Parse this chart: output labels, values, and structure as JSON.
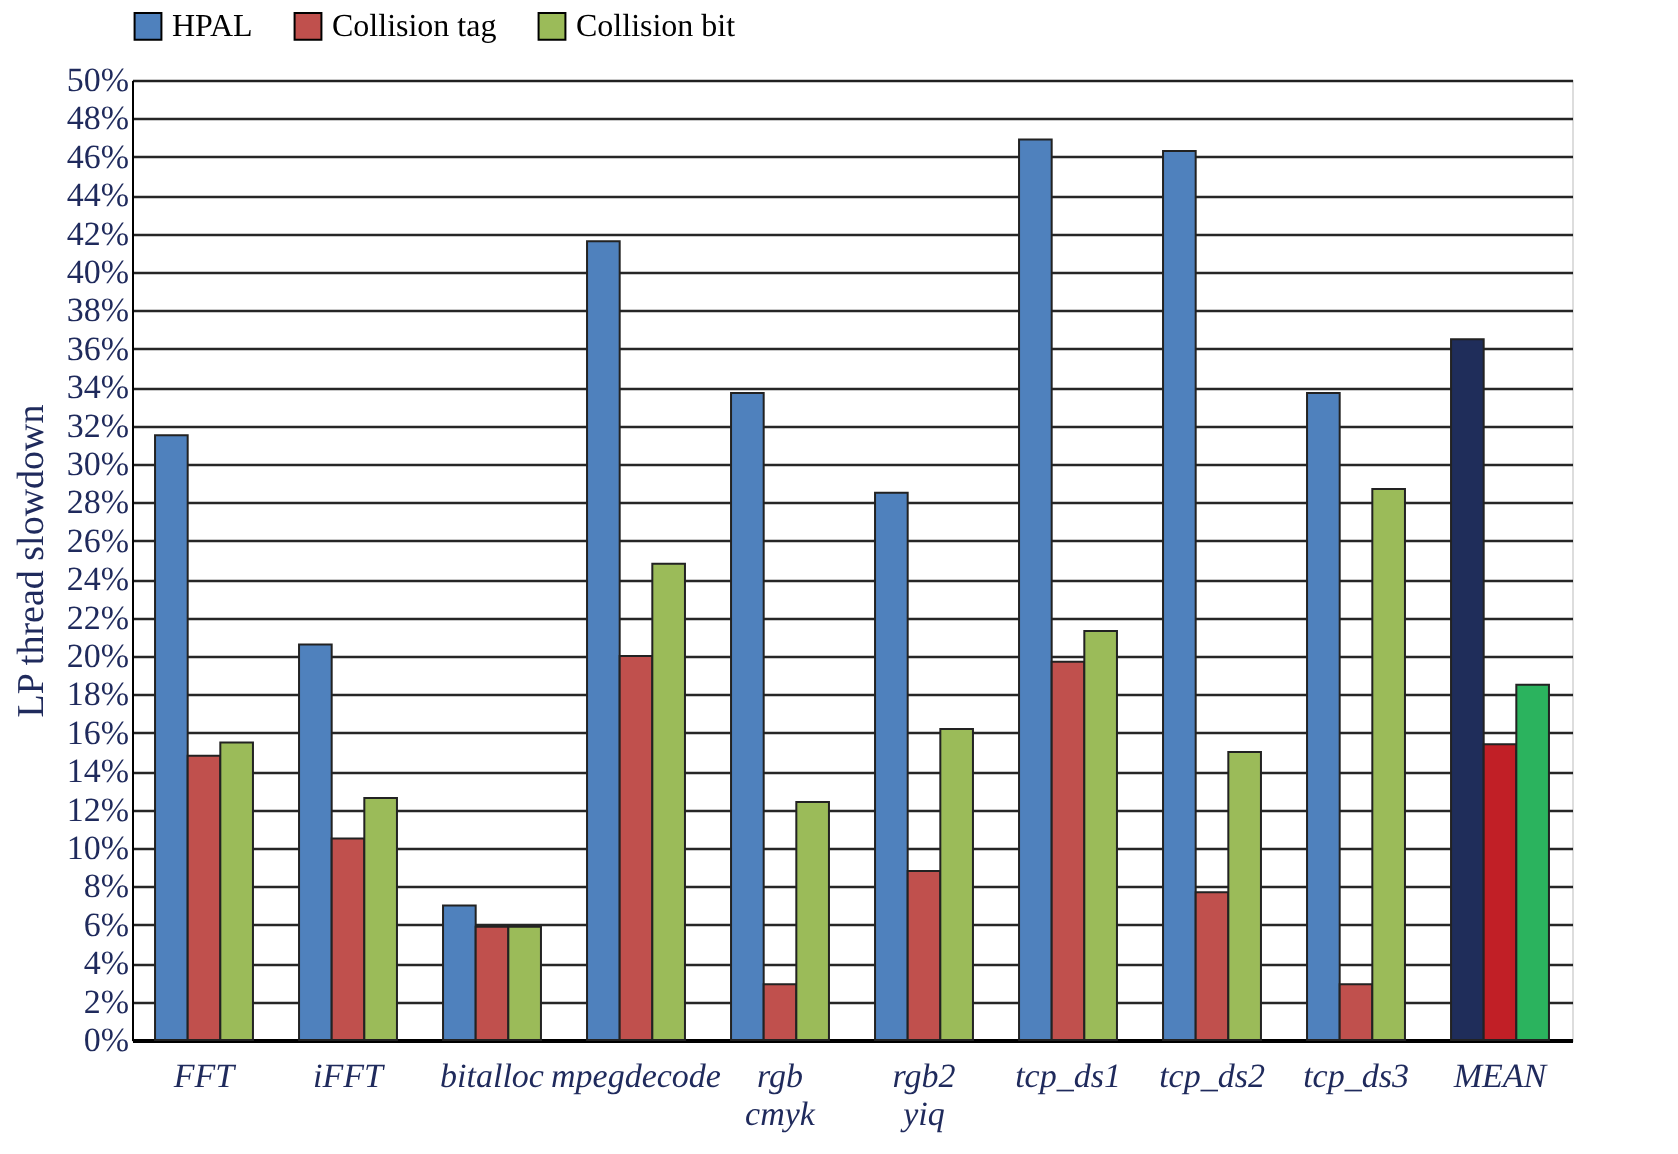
{
  "chart_data": {
    "type": "bar",
    "ylabel": "LP thread slowdown",
    "categories": [
      "FFT",
      "iFFT",
      "bitalloc",
      "mpegdecode",
      "rgb cmyk",
      "rgb2 yiq",
      "tcp_ds1",
      "tcp_ds2",
      "tcp_ds3",
      "MEAN"
    ],
    "series": [
      {
        "name": "HPAL",
        "color": "#4f81bd",
        "colors": [
          "#4f81bd",
          "#4f81bd",
          "#4f81bd",
          "#4f81bd",
          "#4f81bd",
          "#4f81bd",
          "#4f81bd",
          "#4f81bd",
          "#4f81bd",
          "#1f2d5a"
        ],
        "values": [
          31.5,
          20.6,
          7.0,
          41.6,
          33.7,
          28.5,
          46.9,
          46.3,
          33.7,
          36.5
        ]
      },
      {
        "name": "Collision tag",
        "color": "#c0504d",
        "colors": [
          "#c0504d",
          "#c0504d",
          "#c0504d",
          "#c0504d",
          "#c0504d",
          "#c0504d",
          "#c0504d",
          "#c0504d",
          "#c0504d",
          "#c11f26"
        ],
        "values": [
          14.8,
          10.5,
          5.9,
          20.0,
          2.9,
          8.8,
          19.7,
          7.7,
          2.9,
          15.4
        ]
      },
      {
        "name": "Collision bit",
        "color": "#9bbb59",
        "colors": [
          "#9bbb59",
          "#9bbb59",
          "#9bbb59",
          "#9bbb59",
          "#9bbb59",
          "#9bbb59",
          "#9bbb59",
          "#9bbb59",
          "#9bbb59",
          "#2bb35e"
        ],
        "values": [
          15.5,
          12.6,
          5.9,
          24.8,
          12.4,
          16.2,
          21.3,
          15.0,
          28.7,
          18.5
        ]
      }
    ],
    "ylim": [
      0,
      50
    ],
    "yticks": [
      {
        "value": 0,
        "label": "0%"
      },
      {
        "value": 2,
        "label": "2%"
      },
      {
        "value": 4,
        "label": "4%"
      },
      {
        "value": 6,
        "label": "6%"
      },
      {
        "value": 8,
        "label": "8%"
      },
      {
        "value": 10,
        "label": "10%"
      },
      {
        "value": 12,
        "label": "12%"
      },
      {
        "value": 14,
        "label": "14%"
      },
      {
        "value": 16,
        "label": "16%"
      },
      {
        "value": 18,
        "label": "18%"
      },
      {
        "value": 20,
        "label": "20%"
      },
      {
        "value": 22,
        "label": "22%"
      },
      {
        "value": 24,
        "label": "24%"
      },
      {
        "value": 26,
        "label": "26%"
      },
      {
        "value": 28,
        "label": "28%"
      },
      {
        "value": 30,
        "label": "30%"
      },
      {
        "value": 32,
        "label": "32%"
      },
      {
        "value": 34,
        "label": "34%"
      },
      {
        "value": 36,
        "label": "36%"
      },
      {
        "value": 38,
        "label": "38%"
      },
      {
        "value": 40,
        "label": "40%"
      },
      {
        "value": 42,
        "label": "42%"
      },
      {
        "value": 44,
        "label": "44%"
      },
      {
        "value": 46,
        "label": "46%"
      },
      {
        "value": 48,
        "label": "48%"
      },
      {
        "value": 50,
        "label": "50%"
      }
    ],
    "grid": "y",
    "legend": "top"
  }
}
